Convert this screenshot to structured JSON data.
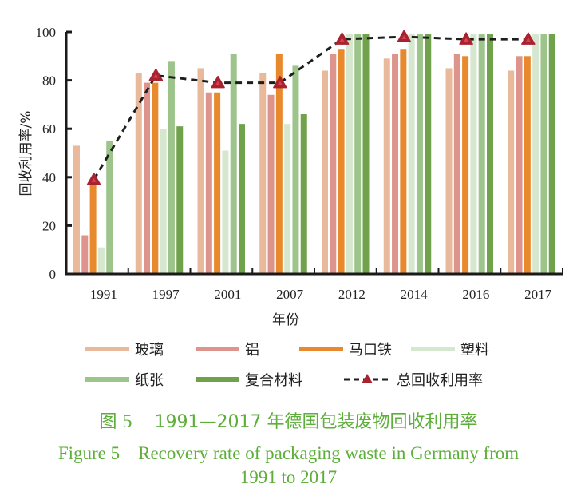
{
  "chart_data": {
    "type": "bar",
    "title": "",
    "xlabel": "年份",
    "ylabel": "回收利用率/%",
    "ylim": [
      0,
      100
    ],
    "yticks": [
      0,
      20,
      40,
      60,
      80,
      100
    ],
    "categories": [
      "1991",
      "1997",
      "2001",
      "2007",
      "2012",
      "2014",
      "2016",
      "2017"
    ],
    "series": [
      {
        "name": "玻璃",
        "color": "#E9B99C",
        "values": [
          53,
          83,
          85,
          83,
          84,
          89,
          85,
          84
        ]
      },
      {
        "name": "铝",
        "color": "#DC948D",
        "values": [
          16,
          79,
          75,
          74,
          91,
          91,
          91,
          90
        ]
      },
      {
        "name": "马口铁",
        "color": "#E8892D",
        "values": [
          37,
          79,
          75,
          91,
          93,
          93,
          90,
          90
        ]
      },
      {
        "name": "塑料",
        "color": "#D6E7CF",
        "values": [
          11,
          60,
          51,
          62,
          99,
          99,
          99,
          99
        ]
      },
      {
        "name": "纸张",
        "color": "#9DC48A",
        "values": [
          55,
          88,
          91,
          86,
          99,
          99,
          99,
          99
        ]
      },
      {
        "name": "复合材料",
        "color": "#6FA24A",
        "values": [
          0,
          61,
          62,
          66,
          99,
          99,
          99,
          99
        ]
      }
    ],
    "line_series": {
      "name": "总回收利用率",
      "type": "line",
      "style": "dashed",
      "marker": "triangle",
      "color": "#1E1E1E",
      "marker_color": "#A8222F",
      "values": [
        39,
        82,
        79,
        79,
        97,
        98,
        97,
        97
      ]
    },
    "legend": {
      "placement": "bottom",
      "entries": [
        "玻璃",
        "铝",
        "马口铁",
        "塑料",
        "纸张",
        "复合材料",
        "总回收利用率"
      ]
    },
    "grid": false
  },
  "caption": {
    "zh_prefix": "图",
    "zh_number": "5",
    "zh_text": "1991—2017 年德国包装废物回收利用率",
    "en_line1": "Figure 5    Recovery rate of packaging waste in Germany from",
    "en_line2": "1991 to 2017"
  }
}
